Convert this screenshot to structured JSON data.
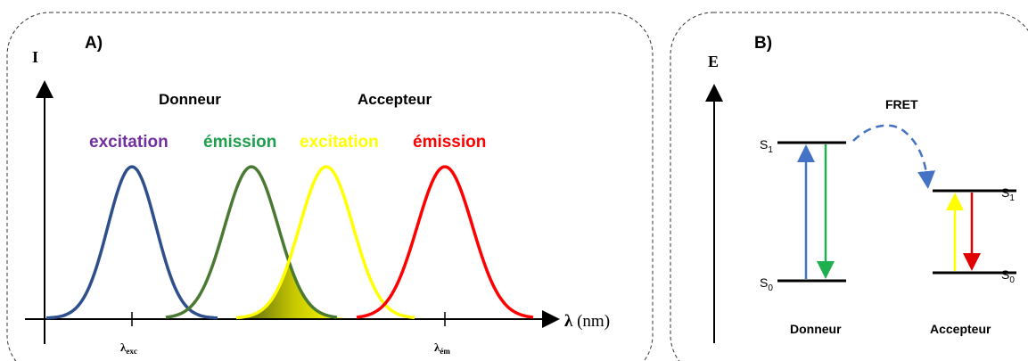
{
  "panel_a": {
    "tag": "A)",
    "y_axis_label": "I",
    "x_axis_label_symbol": "λ",
    "x_axis_label_unit": " (nm)",
    "group_donneur": "Donneur",
    "group_accepteur": "Accepteur",
    "label_donor_excitation": "excitation",
    "label_donor_emission": "émission",
    "label_acceptor_excitation": "excitation",
    "label_acceptor_emission": "émission",
    "tick_exc_main": "λ",
    "tick_exc_sub": "exc",
    "tick_em_main": "λ",
    "tick_em_sub": "ém"
  },
  "panel_b": {
    "tag": "B)",
    "y_axis_label": "E",
    "fret_label": "FRET",
    "donor_s1_main": "S",
    "donor_s1_sub": "1",
    "donor_s0_main": "S",
    "donor_s0_sub": "0",
    "acceptor_s1_main": "S",
    "acceptor_s1_sub": "1",
    "acceptor_s0_main": "S",
    "acceptor_s0_sub": "0",
    "label_donneur": "Donneur",
    "label_accepteur": "Accepteur"
  },
  "colors": {
    "donor_excitation": "#2e4e8c",
    "donor_emission": "#4a7a32",
    "acceptor_excitation": "#ffff00",
    "acceptor_emission": "#ff0000",
    "label_donor_excitation": "#7030a0",
    "label_donor_emission": "#1f9e4e",
    "label_acceptor_excitation": "#ffff00",
    "label_acceptor_emission": "#ff0000",
    "fret_arrow": "#4472c4",
    "arrow_up_donor": "#4472c4",
    "arrow_down_donor": "#1faf4e",
    "arrow_up_acceptor": "#ffff00",
    "arrow_down_acceptor": "#e00000"
  }
}
